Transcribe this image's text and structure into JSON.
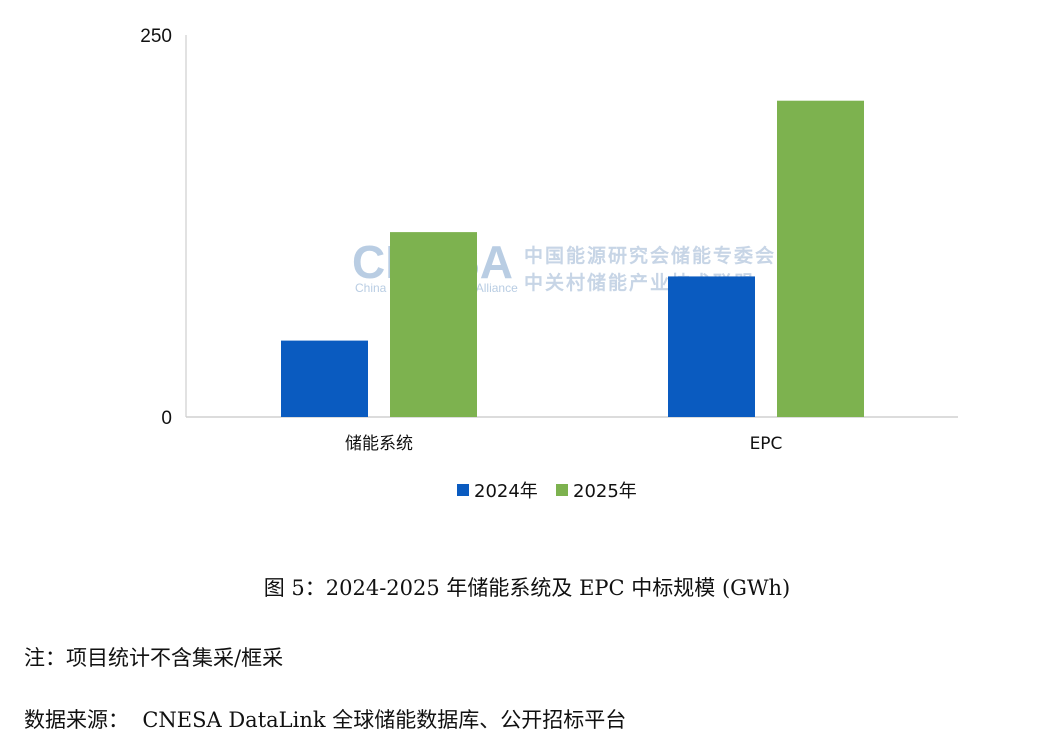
{
  "chart_data": {
    "type": "bar",
    "categories": [
      "储能系统",
      "EPC"
    ],
    "series": [
      {
        "name": "2024年",
        "color": "#0a5bc0",
        "values": [
          50,
          92
        ]
      },
      {
        "name": "2025年",
        "color": "#7db24f",
        "values": [
          121,
          207
        ]
      }
    ],
    "ylim": [
      0,
      250
    ],
    "yticks": [
      "0",
      "250"
    ],
    "grid": false,
    "legend": "bottom"
  },
  "watermark": {
    "logo": "CNESA",
    "subtitle": "China Energy Storage Alliance",
    "line1": "中国能源研究会储能专委会",
    "line2": "中关村储能产业技术联盟"
  },
  "caption": "图 5：2024-2025 年储能系统及 EPC 中标规模 (GWh)",
  "note": "注：项目统计不含集采/框采",
  "source": "数据来源：  CNESA DataLink 全球储能数据库、公开招标平台"
}
